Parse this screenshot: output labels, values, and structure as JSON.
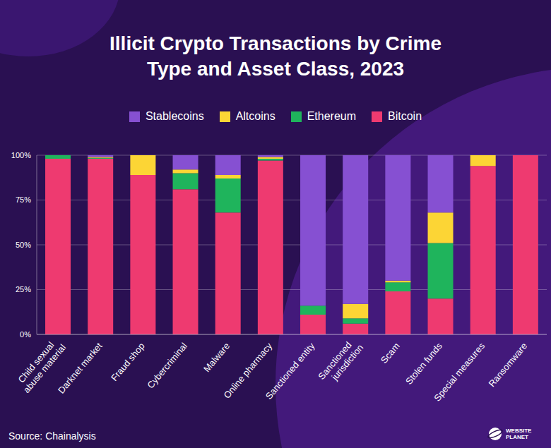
{
  "chart_data": {
    "type": "bar",
    "title": "Illicit Crypto Transactions by Crime Type and Asset Class, 2023",
    "categories": [
      "Child sexual abuse material",
      "Darknet market",
      "Fraud shop",
      "Cybercriminal",
      "Malware",
      "Online pharmacy",
      "Sanctioned entity",
      "Sanctioned jurisdiction",
      "Scam",
      "Stolen funds",
      "Special measures",
      "Ransomware"
    ],
    "series": [
      {
        "name": "Stablecoins",
        "color": "#8650d2",
        "values": [
          0,
          1,
          0,
          8,
          11,
          1,
          84,
          83,
          70,
          32,
          0,
          0
        ]
      },
      {
        "name": "Altcoins",
        "color": "#fcd535",
        "values": [
          0,
          0.5,
          11,
          2,
          2,
          1,
          0,
          8,
          1,
          17,
          6,
          0
        ]
      },
      {
        "name": "Ethereum",
        "color": "#1fb45c",
        "values": [
          2,
          0.5,
          0,
          9,
          19,
          1,
          5,
          3,
          5,
          31,
          0,
          0
        ]
      },
      {
        "name": "Bitcoin",
        "color": "#ee3a70",
        "values": [
          98,
          98,
          89,
          81,
          68,
          97,
          11,
          6,
          24,
          20,
          94,
          100
        ]
      }
    ],
    "ylim": [
      0,
      100
    ],
    "yticks": [
      {
        "value": 0,
        "label": "0%"
      },
      {
        "value": 25,
        "label": "25%"
      },
      {
        "value": 50,
        "label": "50%"
      },
      {
        "value": 75,
        "label": "75%"
      },
      {
        "value": 100,
        "label": "100%"
      }
    ],
    "stacked": true,
    "grid": true,
    "legend": "top",
    "source": "Source: Chainalysis",
    "logo": "WEBSITE PLANET"
  }
}
